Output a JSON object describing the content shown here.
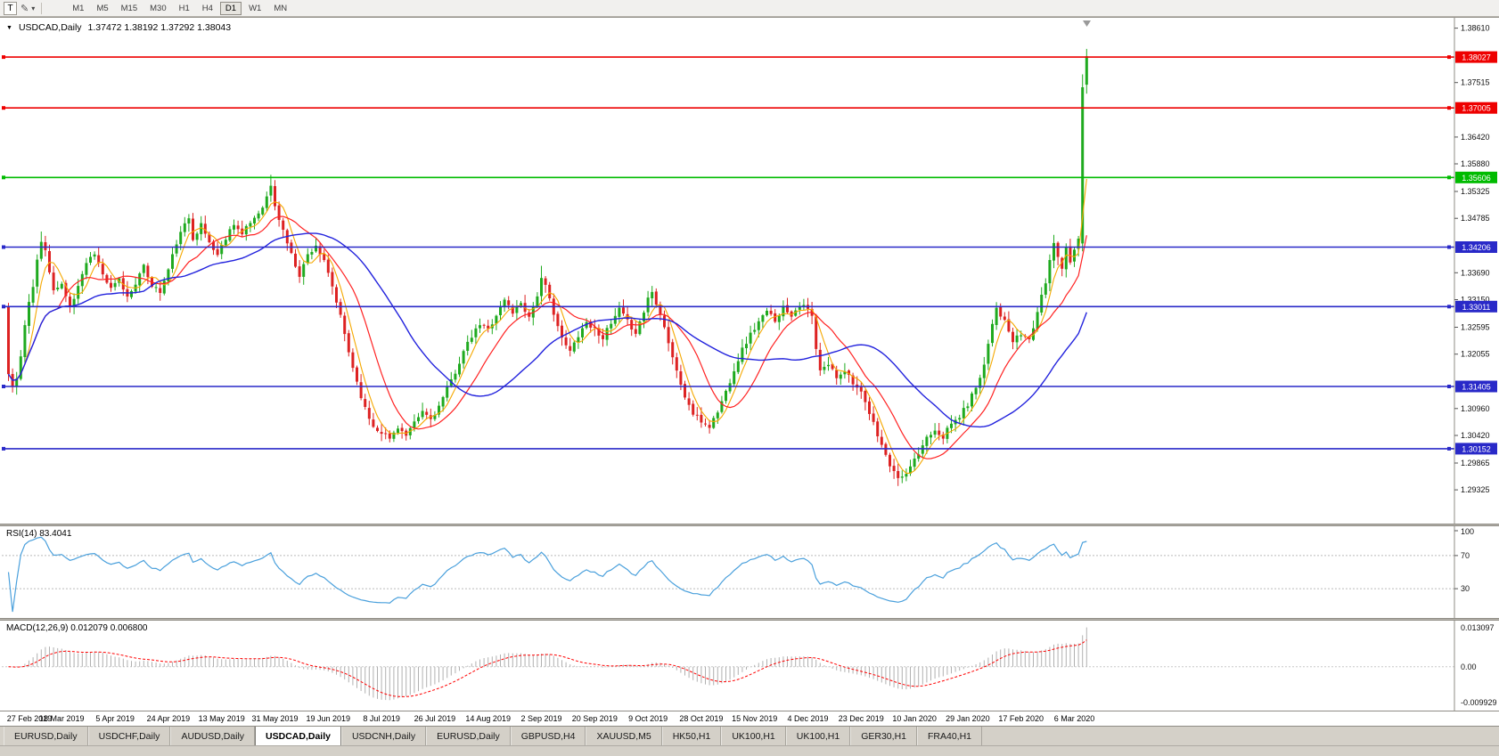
{
  "toolbar": {
    "t_button": "T",
    "dropdown_caret": "▾",
    "timeframes": [
      "M1",
      "M5",
      "M15",
      "M30",
      "H1",
      "H4",
      "D1",
      "W1",
      "MN"
    ],
    "active_timeframe": "D1"
  },
  "chart": {
    "collapse_marker": "▼",
    "title": "USDCAD,Daily",
    "ohlc_text": "1.37472 1.38192 1.37292 1.38043",
    "open": "1.37472",
    "high": "1.38192",
    "low": "1.37292",
    "close": "1.38043"
  },
  "price_axis": {
    "ticks": [
      "1.38610",
      "1.37515",
      "1.36420",
      "1.35880",
      "1.35325",
      "1.34785",
      "1.33690",
      "1.33150",
      "1.32595",
      "1.32055",
      "1.30960",
      "1.30420",
      "1.29865",
      "1.29325"
    ]
  },
  "hlines": [
    {
      "price": 1.38027,
      "label": "1.38027",
      "color": "#ee0000"
    },
    {
      "price": 1.37005,
      "label": "1.37005",
      "color": "#ee0000"
    },
    {
      "price": 1.35606,
      "label": "1.35606",
      "color": "#00bb00"
    },
    {
      "price": 1.34206,
      "label": "1.34206",
      "color": "#2929c8"
    },
    {
      "price": 1.33011,
      "label": "1.33011",
      "color": "#2929c8"
    },
    {
      "price": 1.31405,
      "label": "1.31405",
      "color": "#2929c8"
    },
    {
      "price": 1.30152,
      "label": "1.30152",
      "color": "#2929c8"
    }
  ],
  "rsi_panel": {
    "label": "RSI(14) 83.4041",
    "axis": [
      "100",
      "70",
      "30"
    ]
  },
  "macd_panel": {
    "label": "MACD(12,26,9) 0.012079 0.006800",
    "axis_top": "0.013097",
    "axis_zero": "0.00",
    "axis_bottom": "-0.009929"
  },
  "time_axis": [
    "27 Feb 2019",
    "18 Mar 2019",
    "5 Apr 2019",
    "24 Apr 2019",
    "13 May 2019",
    "31 May 2019",
    "19 Jun 2019",
    "8 Jul 2019",
    "26 Jul 2019",
    "14 Aug 2019",
    "2 Sep 2019",
    "20 Sep 2019",
    "9 Oct 2019",
    "28 Oct 2019",
    "15 Nov 2019",
    "4 Dec 2019",
    "23 Dec 2019",
    "10 Jan 2020",
    "29 Jan 2020",
    "17 Feb 2020",
    "6 Mar 2020"
  ],
  "tabs": {
    "active_index": 3,
    "items": [
      "EURUSD,Daily",
      "USDCHF,Daily",
      "AUDUSD,Daily",
      "USDCAD,Daily",
      "USDCNH,Daily",
      "EURUSD,Daily",
      "GBPUSD,H4",
      "XAUUSD,M5",
      "HK50,H1",
      "UK100,H1",
      "UK100,H1",
      "GER30,H1",
      "FRA40,H1"
    ]
  },
  "colors": {
    "up": "#1faa1f",
    "down": "#dd2222",
    "ma_fast": "#f5a800",
    "ma_mid": "#ff2222",
    "ma_slow": "#2222dd",
    "rsi": "#4aa0dc",
    "histogram": "#b0b0b0",
    "signal": "#ff0000"
  },
  "chart_data": {
    "type": "candlestick",
    "symbol": "USDCAD",
    "period": "Daily",
    "y_range": [
      1.2913,
      1.3871
    ],
    "days_total": 264,
    "label_step_days": 13,
    "last_bar": {
      "open": 1.37472,
      "high": 1.38192,
      "low": 1.37292,
      "close": 1.38043
    },
    "first_open": 1.33,
    "anchors": [
      [
        0,
        1.3165
      ],
      [
        1,
        1.314
      ],
      [
        2,
        1.3155
      ],
      [
        3,
        1.32
      ],
      [
        4,
        1.326
      ],
      [
        5,
        1.331
      ],
      [
        6,
        1.3345
      ],
      [
        7,
        1.3395
      ],
      [
        8,
        1.343
      ],
      [
        9,
        1.3415
      ],
      [
        10,
        1.337
      ],
      [
        11,
        1.333
      ],
      [
        12,
        1.334
      ],
      [
        13,
        1.3345
      ],
      [
        14,
        1.332
      ],
      [
        15,
        1.3305
      ],
      [
        16,
        1.332
      ],
      [
        17,
        1.3345
      ],
      [
        19,
        1.339
      ],
      [
        21,
        1.341
      ],
      [
        23,
        1.3365
      ],
      [
        25,
        1.3335
      ],
      [
        27,
        1.3355
      ],
      [
        29,
        1.332
      ],
      [
        31,
        1.335
      ],
      [
        33,
        1.338
      ],
      [
        35,
        1.3345
      ],
      [
        37,
        1.333
      ],
      [
        39,
        1.3375
      ],
      [
        41,
        1.343
      ],
      [
        43,
        1.3465
      ],
      [
        44,
        1.348
      ],
      [
        45,
        1.344
      ],
      [
        47,
        1.3465
      ],
      [
        49,
        1.343
      ],
      [
        51,
        1.3405
      ],
      [
        53,
        1.344
      ],
      [
        55,
        1.347
      ],
      [
        57,
        1.3445
      ],
      [
        59,
        1.347
      ],
      [
        61,
        1.349
      ],
      [
        63,
        1.352
      ],
      [
        64,
        1.3545
      ],
      [
        65,
        1.35
      ],
      [
        67,
        1.3455
      ],
      [
        69,
        1.3405
      ],
      [
        71,
        1.3365
      ],
      [
        73,
        1.3405
      ],
      [
        75,
        1.3425
      ],
      [
        77,
        1.339
      ],
      [
        79,
        1.334
      ],
      [
        81,
        1.328
      ],
      [
        83,
        1.321
      ],
      [
        85,
        1.315
      ],
      [
        87,
        1.3095
      ],
      [
        89,
        1.306
      ],
      [
        91,
        1.305
      ],
      [
        93,
        1.3035
      ],
      [
        95,
        1.306
      ],
      [
        97,
        1.304
      ],
      [
        99,
        1.3065
      ],
      [
        101,
        1.309
      ],
      [
        103,
        1.3075
      ],
      [
        105,
        1.31
      ],
      [
        107,
        1.3135
      ],
      [
        109,
        1.317
      ],
      [
        111,
        1.321
      ],
      [
        113,
        1.324
      ],
      [
        115,
        1.3265
      ],
      [
        117,
        1.3255
      ],
      [
        119,
        1.3285
      ],
      [
        121,
        1.3315
      ],
      [
        123,
        1.329
      ],
      [
        125,
        1.331
      ],
      [
        127,
        1.328
      ],
      [
        129,
        1.3325
      ],
      [
        130,
        1.3355
      ],
      [
        131,
        1.334
      ],
      [
        133,
        1.329
      ],
      [
        135,
        1.3235
      ],
      [
        137,
        1.321
      ],
      [
        139,
        1.3245
      ],
      [
        141,
        1.327
      ],
      [
        143,
        1.3255
      ],
      [
        145,
        1.324
      ],
      [
        147,
        1.3265
      ],
      [
        149,
        1.3295
      ],
      [
        151,
        1.327
      ],
      [
        153,
        1.325
      ],
      [
        155,
        1.329
      ],
      [
        156,
        1.332
      ],
      [
        157,
        1.333
      ],
      [
        159,
        1.329
      ],
      [
        161,
        1.323
      ],
      [
        163,
        1.317
      ],
      [
        165,
        1.312
      ],
      [
        167,
        1.3085
      ],
      [
        169,
        1.307
      ],
      [
        171,
        1.306
      ],
      [
        173,
        1.309
      ],
      [
        175,
        1.313
      ],
      [
        177,
        1.3175
      ],
      [
        179,
        1.3215
      ],
      [
        181,
        1.3245
      ],
      [
        183,
        1.327
      ],
      [
        185,
        1.329
      ],
      [
        187,
        1.3275
      ],
      [
        189,
        1.33
      ],
      [
        191,
        1.3285
      ],
      [
        193,
        1.3305
      ],
      [
        195,
        1.3295
      ],
      [
        196,
        1.328
      ],
      [
        197,
        1.3215
      ],
      [
        198,
        1.317
      ],
      [
        200,
        1.3185
      ],
      [
        202,
        1.316
      ],
      [
        204,
        1.3175
      ],
      [
        206,
        1.315
      ],
      [
        208,
        1.3125
      ],
      [
        210,
        1.3085
      ],
      [
        212,
        1.3045
      ],
      [
        214,
        1.3
      ],
      [
        216,
        1.2965
      ],
      [
        218,
        1.2955
      ],
      [
        220,
        1.2975
      ],
      [
        222,
        1.3005
      ],
      [
        224,
        1.304
      ],
      [
        226,
        1.3055
      ],
      [
        228,
        1.304
      ],
      [
        230,
        1.3065
      ],
      [
        232,
        1.308
      ],
      [
        234,
        1.3105
      ],
      [
        236,
        1.314
      ],
      [
        238,
        1.3185
      ],
      [
        240,
        1.327
      ],
      [
        241,
        1.33
      ],
      [
        243,
        1.327
      ],
      [
        245,
        1.323
      ],
      [
        247,
        1.3245
      ],
      [
        249,
        1.3235
      ],
      [
        250,
        1.326
      ],
      [
        251,
        1.329
      ],
      [
        252,
        1.332
      ],
      [
        253,
        1.335
      ],
      [
        254,
        1.3395
      ],
      [
        255,
        1.343
      ],
      [
        256,
        1.3405
      ],
      [
        257,
        1.338
      ],
      [
        258,
        1.342
      ],
      [
        259,
        1.3395
      ],
      [
        260,
        1.342
      ],
      [
        261,
        1.3435
      ],
      [
        262,
        1.3742
      ],
      [
        263,
        1.38043
      ]
    ],
    "overrides": {
      "8": [
        null,
        1.3452,
        null,
        null
      ],
      "64": [
        null,
        1.3566,
        null,
        null
      ],
      "93": [
        null,
        null,
        1.3028,
        null
      ],
      "130": [
        null,
        1.3383,
        null,
        null
      ],
      "218": [
        null,
        null,
        1.2946,
        null
      ],
      "262": [
        1.3428,
        1.3768,
        1.3412,
        1.3742
      ],
      "263": [
        1.37472,
        1.38192,
        1.37292,
        1.38043
      ]
    },
    "indicators": {
      "ma_periods": [
        5,
        13,
        34
      ],
      "rsi": {
        "period": 14,
        "value": 83.4041,
        "levels": [
          70,
          30
        ]
      },
      "macd": {
        "fast": 12,
        "slow": 26,
        "signal": 9,
        "value": 0.012079,
        "signal_value": 0.0068
      }
    }
  }
}
